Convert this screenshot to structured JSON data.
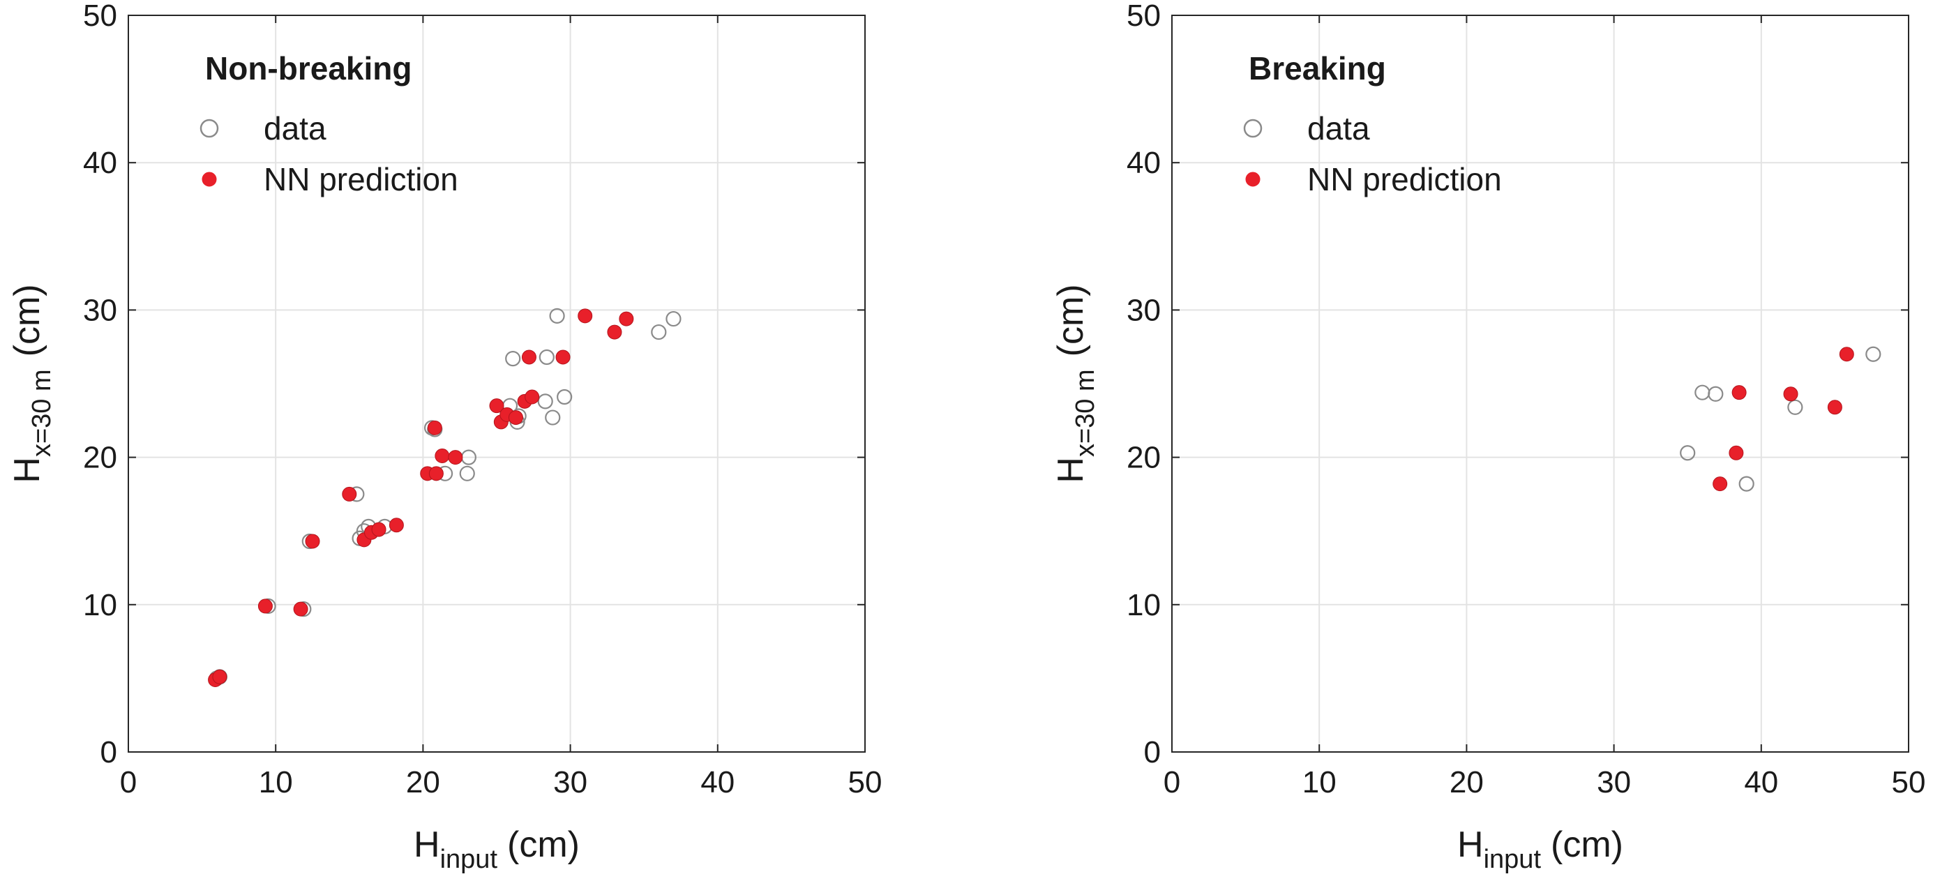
{
  "chart_data": [
    {
      "type": "scatter",
      "title": "Non-breaking",
      "xlabel": "H",
      "xlabel_sub": "input",
      "xlabel_unit": "(cm)",
      "ylabel": "H",
      "ylabel_sub": "x=30 m",
      "ylabel_unit": "(cm)",
      "xlim": [
        0,
        50
      ],
      "ylim": [
        0,
        50
      ],
      "xticks": [
        "0",
        "10",
        "20",
        "30",
        "40",
        "50"
      ],
      "yticks": [
        "0",
        "10",
        "20",
        "30",
        "40",
        "50"
      ],
      "grid": true,
      "legend_position": "top-left",
      "series": [
        {
          "name": "data",
          "marker": "open-circle",
          "color": "#8a8a8a",
          "x": [
            6.0,
            6.2,
            9.5,
            11.9,
            12.3,
            15.5,
            15.7,
            16.0,
            16.3,
            17.4,
            20.6,
            20.8,
            21.5,
            23.0,
            23.1,
            25.9,
            26.1,
            26.4,
            26.5,
            28.3,
            28.4,
            28.8,
            29.1,
            29.6,
            36.0,
            37.0
          ],
          "y": [
            5.0,
            5.1,
            9.9,
            9.7,
            14.3,
            17.5,
            14.5,
            15.0,
            15.3,
            15.3,
            22.0,
            21.9,
            18.9,
            18.9,
            20.0,
            23.5,
            26.7,
            22.4,
            22.8,
            23.8,
            26.8,
            22.7,
            29.6,
            24.1,
            28.5,
            29.4
          ]
        },
        {
          "name": "NN prediction",
          "marker": "filled-circle",
          "color": "#e8202a",
          "x": [
            5.9,
            6.2,
            9.3,
            11.7,
            12.5,
            15.0,
            16.0,
            16.5,
            17.0,
            18.2,
            20.3,
            20.9,
            20.8,
            21.3,
            22.2,
            25.0,
            25.3,
            25.7,
            26.3,
            26.9,
            27.2,
            27.4,
            29.5,
            31.0,
            33.0,
            33.8
          ],
          "y": [
            4.9,
            5.1,
            9.9,
            9.7,
            14.3,
            17.5,
            14.4,
            14.9,
            15.1,
            15.4,
            18.9,
            18.9,
            22.0,
            20.1,
            20.0,
            23.5,
            22.4,
            22.9,
            22.7,
            23.8,
            26.8,
            24.1,
            26.8,
            29.6,
            28.5,
            29.4
          ]
        }
      ]
    },
    {
      "type": "scatter",
      "title": "Breaking",
      "xlabel": "H",
      "xlabel_sub": "input",
      "xlabel_unit": "(cm)",
      "ylabel": "H",
      "ylabel_sub": "x=30 m",
      "ylabel_unit": "(cm)",
      "xlim": [
        0,
        50
      ],
      "ylim": [
        0,
        50
      ],
      "xticks": [
        "0",
        "10",
        "20",
        "30",
        "40",
        "50"
      ],
      "yticks": [
        "0",
        "10",
        "20",
        "30",
        "40",
        "50"
      ],
      "grid": true,
      "legend_position": "top-left",
      "series": [
        {
          "name": "data",
          "marker": "open-circle",
          "color": "#8a8a8a",
          "x": [
            35.0,
            36.0,
            36.9,
            39.0,
            42.3,
            47.6
          ],
          "y": [
            20.3,
            24.4,
            24.3,
            18.2,
            23.4,
            27.0
          ]
        },
        {
          "name": "NN prediction",
          "marker": "filled-circle",
          "color": "#e8202a",
          "x": [
            37.2,
            38.3,
            38.5,
            42.0,
            45.0,
            45.8
          ],
          "y": [
            18.2,
            20.3,
            24.4,
            24.3,
            23.4,
            27.0
          ]
        }
      ]
    }
  ]
}
